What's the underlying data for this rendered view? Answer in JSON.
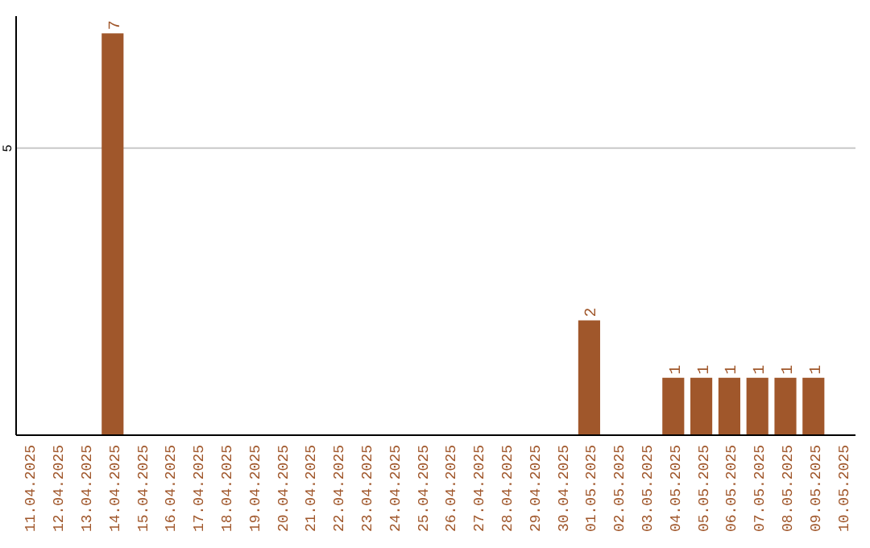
{
  "chart_data": {
    "type": "bar",
    "categories": [
      "11.04.2025",
      "12.04.2025",
      "13.04.2025",
      "14.04.2025",
      "15.04.2025",
      "16.04.2025",
      "17.04.2025",
      "18.04.2025",
      "19.04.2025",
      "20.04.2025",
      "21.04.2025",
      "22.04.2025",
      "23.04.2025",
      "24.04.2025",
      "25.04.2025",
      "26.04.2025",
      "27.04.2025",
      "28.04.2025",
      "29.04.2025",
      "30.04.2025",
      "01.05.2025",
      "02.05.2025",
      "03.05.2025",
      "04.05.2025",
      "05.05.2025",
      "06.05.2025",
      "07.05.2025",
      "08.05.2025",
      "09.05.2025",
      "10.05.2025"
    ],
    "values": [
      0,
      0,
      0,
      7,
      0,
      0,
      0,
      0,
      0,
      0,
      0,
      0,
      0,
      0,
      0,
      0,
      0,
      0,
      0,
      0,
      2,
      0,
      0,
      1,
      1,
      1,
      1,
      1,
      1,
      0
    ],
    "value_labels": [
      null,
      null,
      null,
      "7",
      null,
      null,
      null,
      null,
      null,
      null,
      null,
      null,
      null,
      null,
      null,
      null,
      null,
      null,
      null,
      null,
      "2",
      null,
      null,
      "1",
      "1",
      "1",
      "1",
      "1",
      "1",
      null
    ],
    "color": "#a0572b",
    "ylim": [
      0,
      7.3
    ],
    "yticks": [
      5
    ],
    "grid": "y"
  }
}
